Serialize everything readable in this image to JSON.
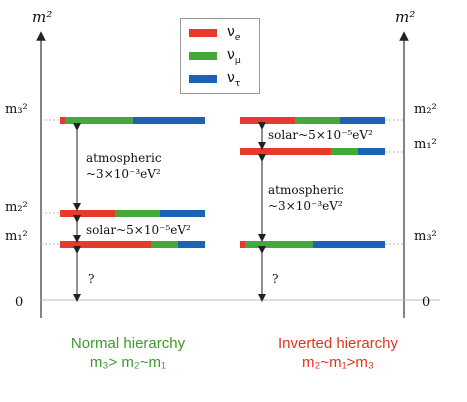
{
  "colors": {
    "nu_e": "#e8392e",
    "nu_mu": "#45a83a",
    "nu_tau": "#1c63b4",
    "normal_caption": "#3d9a2c",
    "inverted_caption": "#e2341d"
  },
  "legend": {
    "items": [
      {
        "symbol": "ν",
        "sub": "e"
      },
      {
        "symbol": "ν",
        "sub": "μ"
      },
      {
        "symbol": "ν",
        "sub": "τ"
      }
    ]
  },
  "axes": {
    "left_title": "m²",
    "right_title": "m²"
  },
  "normal": {
    "labels": {
      "m3": "m₃²",
      "m2": "m₂²",
      "m1": "m₁²",
      "zero": "0"
    },
    "atmospheric": {
      "line1": "atmospheric",
      "line2": "~3×10⁻³eV²"
    },
    "solar": "solar~5×10⁻⁵eV²",
    "lowest": "?",
    "caption": {
      "title": "Normal hierarchy",
      "relation": "m₃> m₂~m₁"
    }
  },
  "inverted": {
    "labels": {
      "m2": "m₂²",
      "m1": "m₁²",
      "m3": "m₃²",
      "zero": "0"
    },
    "atmospheric": {
      "line1": "atmospheric",
      "line2": "~3×10⁻³eV²"
    },
    "solar": "solar~5×10⁻⁵eV²",
    "lowest": "?",
    "caption": {
      "title": "Inverted hierarchy",
      "relation": "m₂~m₁>m₃"
    }
  }
}
